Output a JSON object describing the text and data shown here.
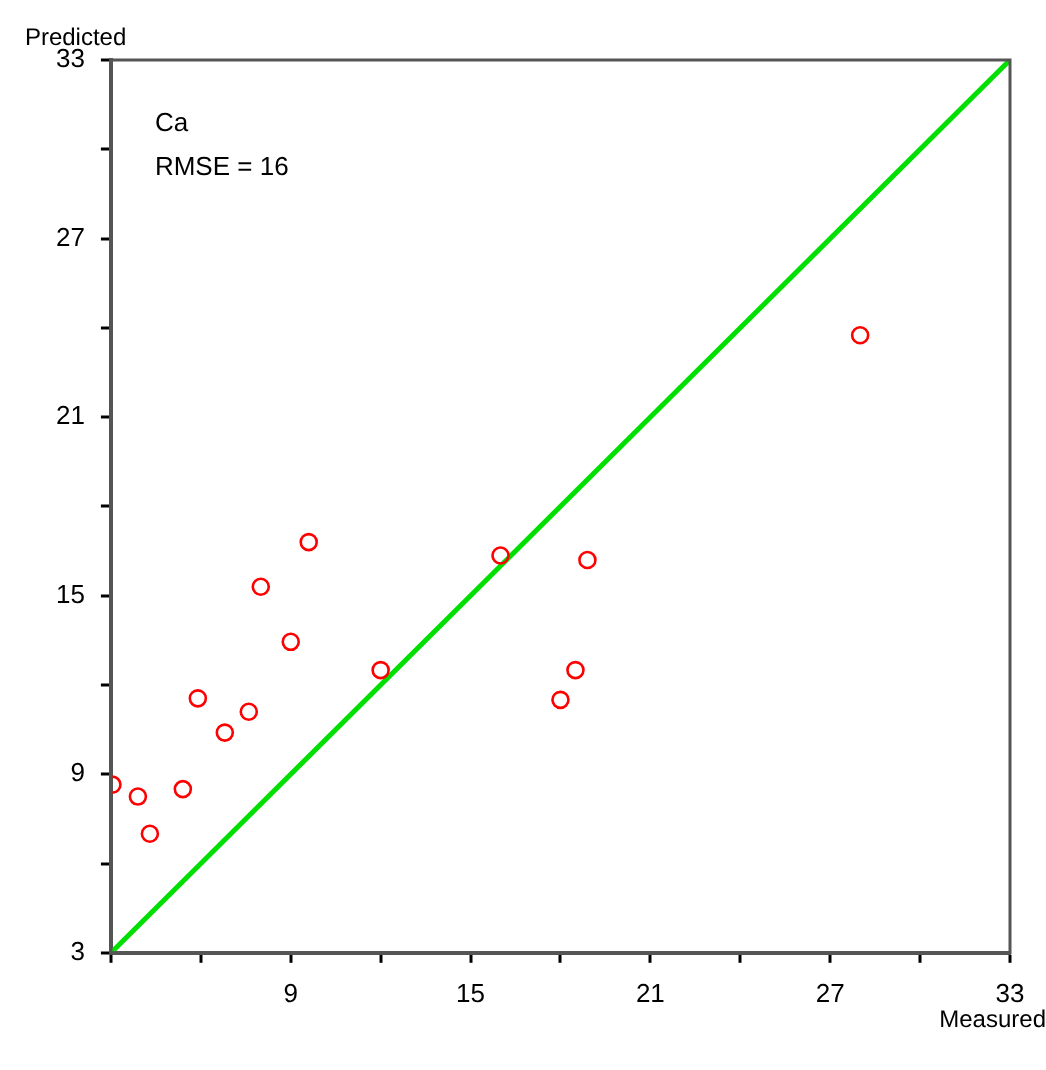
{
  "chart_data": {
    "type": "scatter",
    "xlabel": "Measured",
    "ylabel": "Predicted",
    "annotations": [
      "Ca",
      "RMSE = 16"
    ],
    "series": [
      {
        "type": "scatter",
        "color": "#ff0000",
        "x": [
          3.05,
          3.9,
          4.3,
          5.4,
          5.9,
          6.8,
          7.6,
          8.0,
          9.0,
          9.6,
          12.0,
          16.0,
          18.0,
          18.5,
          18.9,
          28.0
        ],
        "values": [
          8.65,
          8.25,
          7.0,
          8.5,
          11.55,
          10.4,
          11.1,
          15.3,
          13.45,
          16.8,
          12.5,
          16.35,
          11.5,
          12.5,
          16.2,
          23.75
        ]
      },
      {
        "type": "line",
        "color": "#00e000",
        "marker": "none",
        "x": [
          3,
          33
        ],
        "values": [
          3,
          33
        ]
      }
    ],
    "xlim": [
      3,
      33
    ],
    "ylim": [
      3,
      33
    ],
    "xticks": [
      {
        "value": 3,
        "label": null
      },
      {
        "value": 6,
        "label": null
      },
      9,
      {
        "value": 12,
        "label": null
      },
      15,
      {
        "value": 18,
        "label": null
      },
      21,
      {
        "value": 24,
        "label": null
      },
      27,
      {
        "value": 30,
        "label": null
      },
      33
    ],
    "yticks": [
      3,
      {
        "value": 6,
        "label": null
      },
      9,
      {
        "value": 12,
        "label": null
      },
      15,
      {
        "value": 18,
        "label": null
      },
      21,
      {
        "value": 24,
        "label": null
      },
      27,
      {
        "value": 30,
        "label": null
      },
      33
    ],
    "grid": false,
    "legend": false,
    "marker": "circle"
  }
}
